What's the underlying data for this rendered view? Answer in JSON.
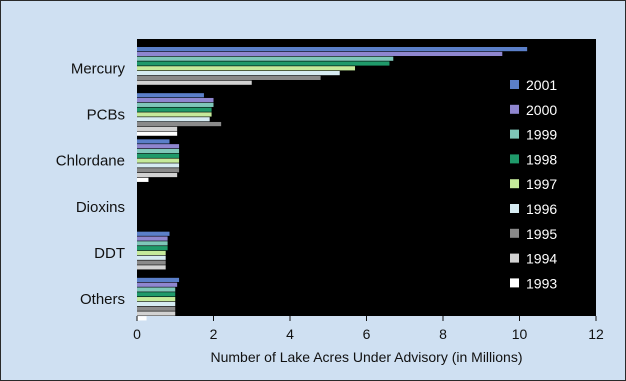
{
  "chart_data": {
    "type": "bar",
    "orientation": "horizontal",
    "title": "",
    "xlabel": "Number of Lake Acres Under Advisory (in Millions)",
    "ylabel": "",
    "xlim": [
      0,
      12
    ],
    "xticks": [
      "0",
      "2",
      "4",
      "6",
      "8",
      "10",
      "12"
    ],
    "grid": false,
    "legend_position": "right",
    "categories": [
      "Mercury",
      "PCBs",
      "Chlordane",
      "Dioxins",
      "DDT",
      "Others"
    ],
    "series": [
      {
        "name": "2001",
        "color": "#5b7fc9",
        "values": [
          10.2,
          1.75,
          0.85,
          0.0,
          0.85,
          1.1
        ]
      },
      {
        "name": "2000",
        "color": "#8f86cf",
        "values": [
          9.55,
          2.0,
          1.1,
          0.0,
          0.8,
          1.05
        ]
      },
      {
        "name": "1999",
        "color": "#7fc7b9",
        "values": [
          6.7,
          2.0,
          1.1,
          0.0,
          0.8,
          1.0
        ]
      },
      {
        "name": "1998",
        "color": "#1f9a6a",
        "values": [
          6.6,
          1.95,
          1.1,
          0.0,
          0.8,
          1.0
        ]
      },
      {
        "name": "1997",
        "color": "#c5ea9b",
        "values": [
          5.7,
          1.95,
          1.1,
          0.0,
          0.75,
          1.0
        ]
      },
      {
        "name": "1996",
        "color": "#d6ebf2",
        "values": [
          5.3,
          1.9,
          1.1,
          0.0,
          0.75,
          1.0
        ]
      },
      {
        "name": "1995",
        "color": "#8a8a8a",
        "values": [
          4.8,
          2.2,
          1.1,
          0.0,
          0.75,
          1.0
        ]
      },
      {
        "name": "1994",
        "color": "#d2d2d2",
        "values": [
          3.0,
          1.05,
          1.05,
          0.0,
          0.75,
          1.0
        ]
      },
      {
        "name": "1993",
        "color": "#ffffff",
        "values": [
          0.0,
          1.05,
          0.3,
          0.0,
          0.0,
          0.25
        ]
      }
    ]
  }
}
